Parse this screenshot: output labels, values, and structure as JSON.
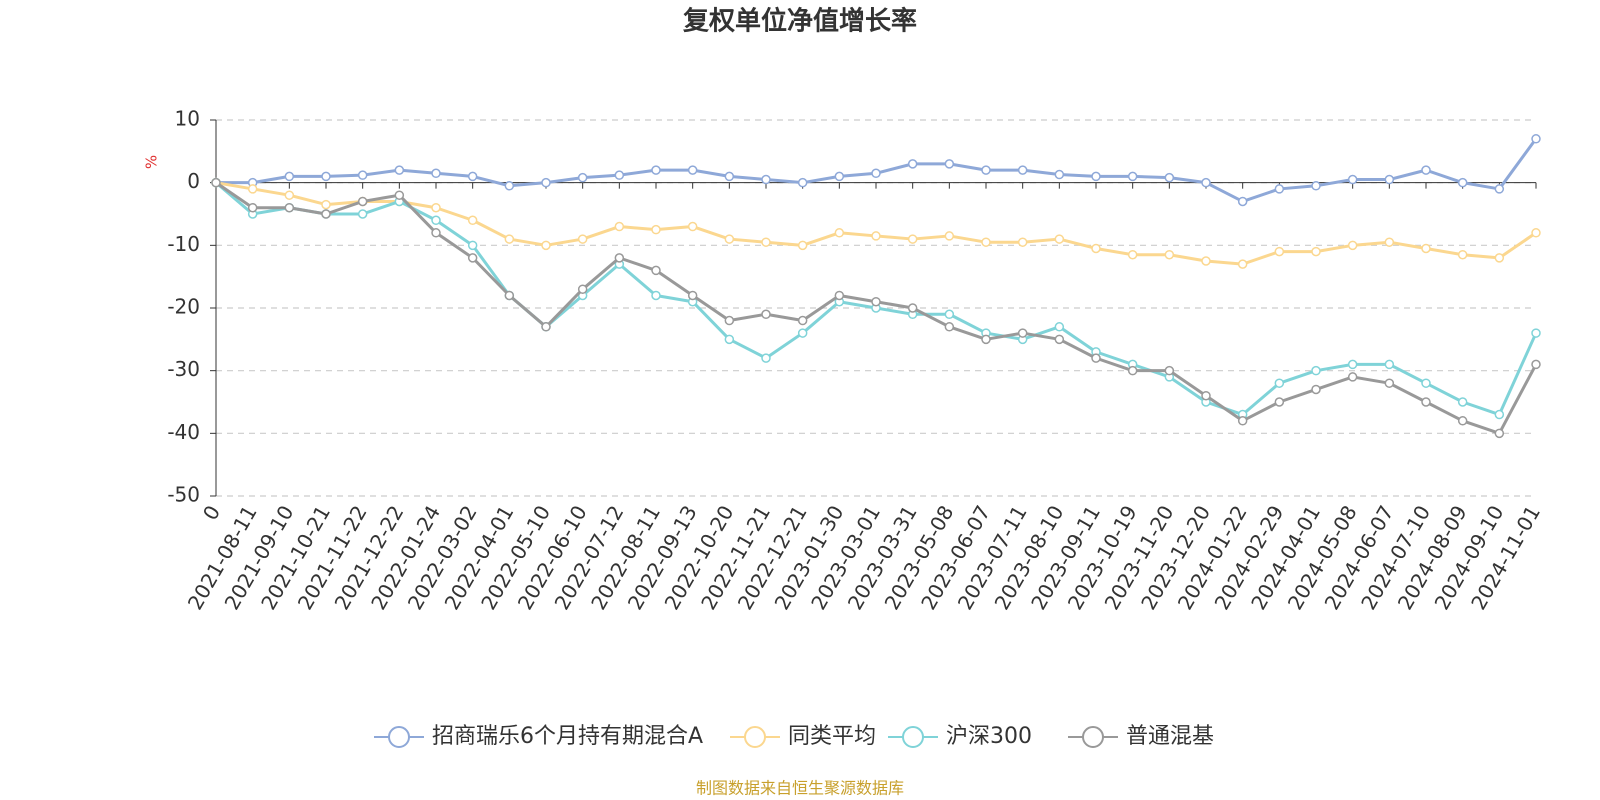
{
  "chart_data": {
    "type": "line",
    "title": "复权单位净值增长率",
    "y_label": "%",
    "categories": [
      "0",
      "2021-08-11",
      "2021-09-10",
      "2021-10-21",
      "2021-11-22",
      "2021-12-22",
      "2022-01-24",
      "2022-03-02",
      "2022-04-01",
      "2022-05-10",
      "2022-06-10",
      "2022-07-12",
      "2022-08-11",
      "2022-09-13",
      "2022-10-20",
      "2022-11-21",
      "2022-12-21",
      "2023-01-30",
      "2023-03-01",
      "2023-03-31",
      "2023-05-08",
      "2023-06-07",
      "2023-07-11",
      "2023-08-10",
      "2023-09-11",
      "2023-10-19",
      "2023-11-20",
      "2023-12-20",
      "2024-01-22",
      "2024-02-29",
      "2024-04-01",
      "2024-05-08",
      "2024-06-07",
      "2024-07-10",
      "2024-08-09",
      "2024-09-10",
      "2024-11-01"
    ],
    "series": [
      {
        "name": "招商瑞乐6个月持有期混合A",
        "color": "#8ea8d8",
        "values": [
          0,
          0,
          1,
          1,
          1.2,
          2,
          1.5,
          1,
          -0.5,
          0,
          0.8,
          1.2,
          2,
          2,
          1,
          0.5,
          0,
          1,
          1.5,
          3,
          3,
          2,
          2,
          1.3,
          1,
          1,
          0.8,
          0,
          -3,
          -1,
          -0.5,
          0.5,
          0.5,
          2,
          0,
          -1,
          7
        ]
      },
      {
        "name": "同类平均",
        "color": "#fbd78f",
        "values": [
          0,
          -1,
          -2,
          -3.5,
          -3,
          -3,
          -4,
          -6,
          -9,
          -10,
          -9,
          -7,
          -7.5,
          -7,
          -9,
          -9.5,
          -10,
          -8,
          -8.5,
          -9,
          -8.5,
          -9.5,
          -9.5,
          -9,
          -10.5,
          -11.5,
          -11.5,
          -12.5,
          -13,
          -11,
          -11,
          -10,
          -9.5,
          -10.5,
          -11.5,
          -12,
          -8
        ]
      },
      {
        "name": "沪深300",
        "color": "#7fd3d8",
        "values": [
          0,
          -5,
          -4,
          -5,
          -5,
          -3,
          -6,
          -10,
          -18,
          -23,
          -18,
          -13,
          -18,
          -19,
          -25,
          -28,
          -24,
          -19,
          -20,
          -21,
          -21,
          -24,
          -25,
          -23,
          -27,
          -29,
          -31,
          -35,
          -37,
          -32,
          -30,
          -29,
          -29,
          -32,
          -35,
          -37,
          -24
        ]
      },
      {
        "name": "普通混基",
        "color": "#999999",
        "values": [
          0,
          -4,
          -4,
          -5,
          -3,
          -2,
          -8,
          -12,
          -18,
          -23,
          -17,
          -12,
          -14,
          -18,
          -22,
          -21,
          -22,
          -18,
          -19,
          -20,
          -23,
          -25,
          -24,
          -25,
          -28,
          -30,
          -30,
          -34,
          -38,
          -35,
          -33,
          -31,
          -32,
          -35,
          -38,
          -40,
          -29
        ]
      }
    ],
    "ylim": [
      -50,
      10
    ],
    "yticks": [
      -50,
      -40,
      -30,
      -20,
      -10,
      0,
      10
    ],
    "grid": true,
    "legend": "bottom",
    "source": "制图数据来自恒生聚源数据库"
  }
}
